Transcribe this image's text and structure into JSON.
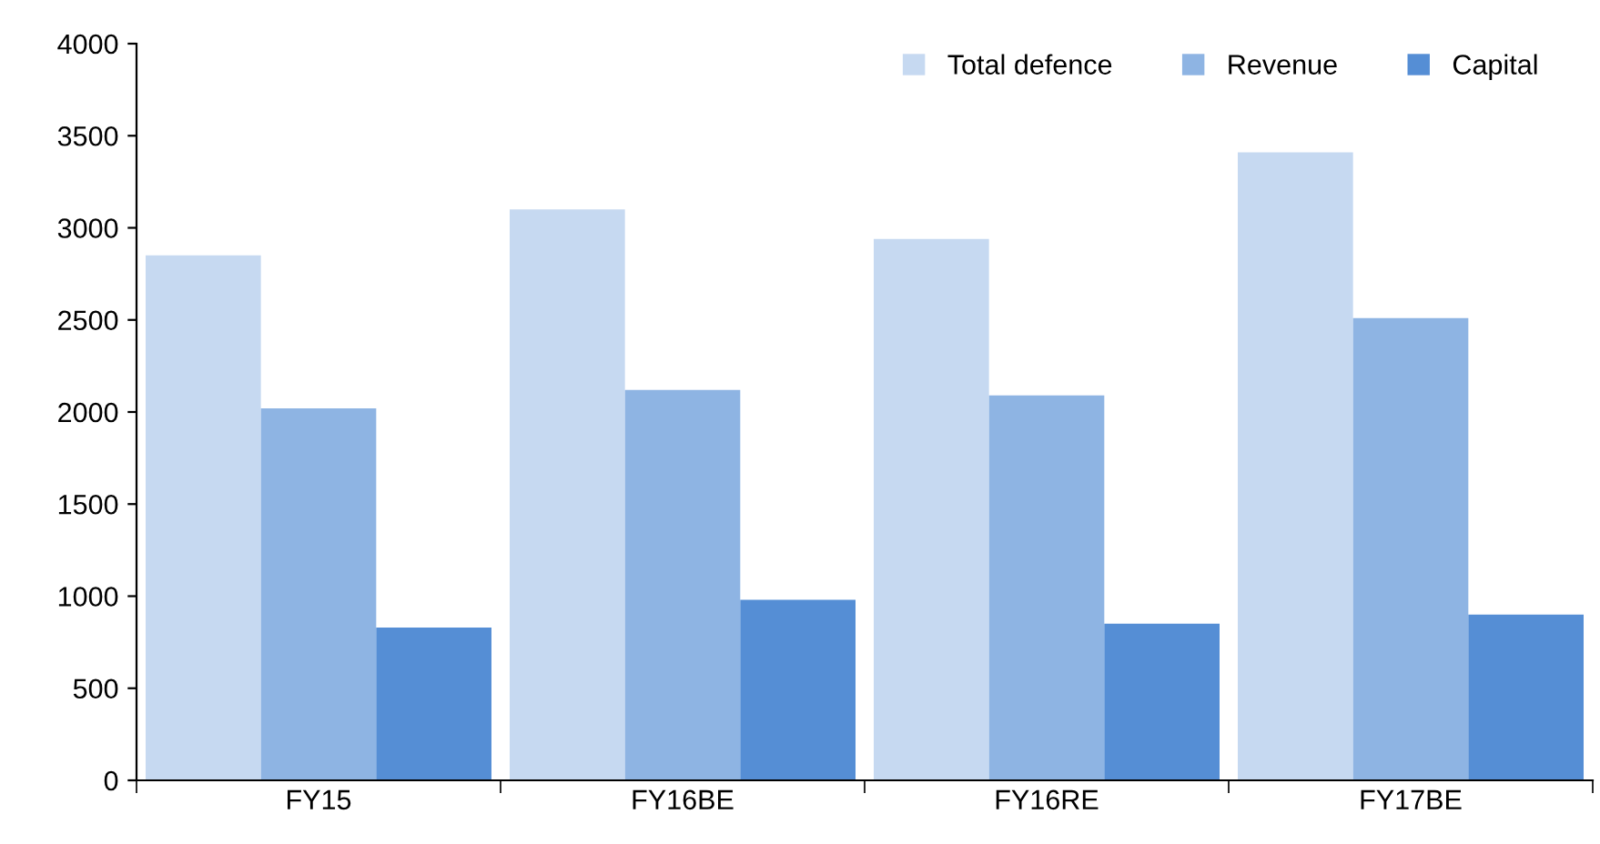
{
  "chart_data": {
    "type": "bar",
    "categories": [
      "FY15",
      "FY16BE",
      "FY16RE",
      "FY17BE"
    ],
    "series": [
      {
        "name": "Total defence",
        "color": "#c6d9f1",
        "values": [
          2850,
          3100,
          2940,
          3410
        ]
      },
      {
        "name": "Revenue",
        "color": "#8eb4e3",
        "values": [
          2020,
          2120,
          2090,
          2510
        ]
      },
      {
        "name": "Capital",
        "color": "#558ed5",
        "values": [
          830,
          980,
          850,
          900
        ]
      }
    ],
    "ylim": [
      0,
      4000
    ],
    "yticks": [
      0,
      500,
      1000,
      1500,
      2000,
      2500,
      3000,
      3500,
      4000
    ],
    "grid": false,
    "legend": "top right"
  }
}
